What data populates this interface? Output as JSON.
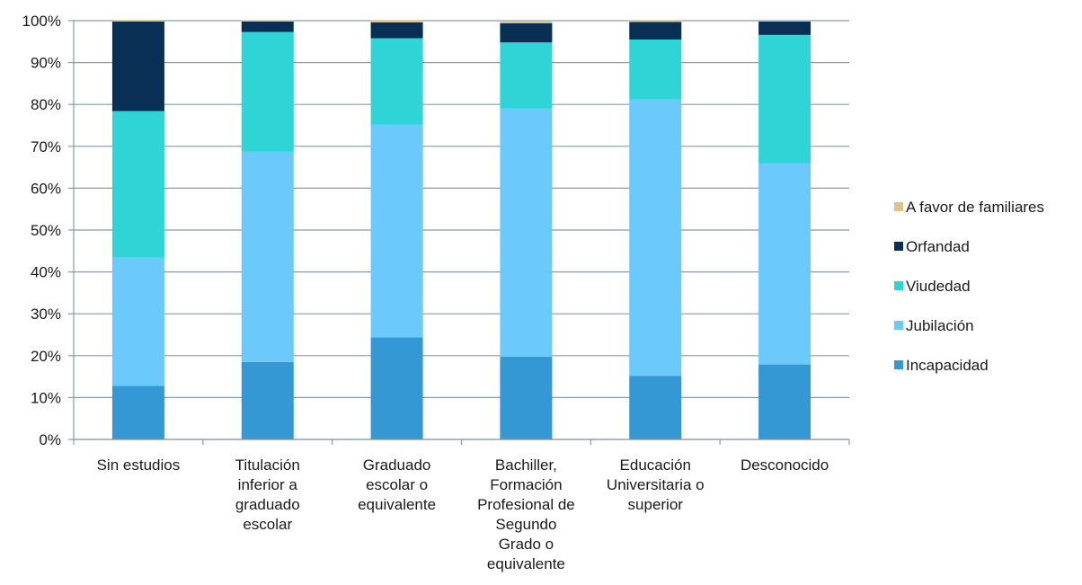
{
  "chart_data": {
    "type": "bar",
    "stacked": true,
    "percent": true,
    "categories": [
      [
        "Sin estudios"
      ],
      [
        "Titulación",
        "inferior a",
        "graduado",
        "escolar"
      ],
      [
        "Graduado",
        "escolar o",
        "equivalente"
      ],
      [
        "Bachiller,",
        "Formación",
        "Profesional de",
        "Segundo",
        "Grado o",
        "equivalente"
      ],
      [
        "Educación",
        "Universitaria o",
        "superior"
      ],
      [
        "Desconocido"
      ]
    ],
    "series": [
      {
        "name": "Incapacidad",
        "color": "#3498d4",
        "values": [
          12.8,
          18.5,
          24.4,
          19.8,
          15.2,
          17.9
        ]
      },
      {
        "name": "Jubilación",
        "color": "#6cc9fb",
        "values": [
          30.6,
          50.2,
          50.8,
          59.2,
          66.0,
          48.0
        ]
      },
      {
        "name": "Viudedad",
        "color": "#2fd4d6",
        "values": [
          35.0,
          28.6,
          20.6,
          15.8,
          14.3,
          30.7
        ]
      },
      {
        "name": "Orfandad",
        "color": "#0a2f55",
        "values": [
          21.4,
          2.5,
          3.8,
          4.6,
          4.2,
          3.2
        ]
      },
      {
        "name": "A favor de familiares",
        "color": "#d9c48a",
        "values": [
          0.4,
          0.3,
          0.5,
          0.6,
          0.4,
          0.2
        ]
      }
    ],
    "y_ticks": [
      "0%",
      "10%",
      "20%",
      "30%",
      "40%",
      "50%",
      "60%",
      "70%",
      "80%",
      "90%",
      "100%"
    ],
    "ylim": [
      0,
      100
    ],
    "grid": true,
    "legend_position": "right",
    "title": "",
    "xlabel": "",
    "ylabel": ""
  }
}
